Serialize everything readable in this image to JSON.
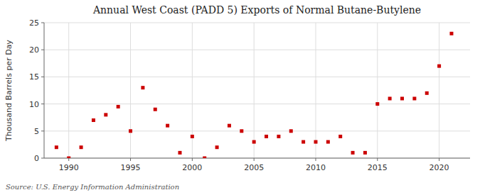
{
  "chart_data": {
    "type": "scatter",
    "title": "Annual West Coast (PADD 5) Exports of Normal Butane-Butylene",
    "ylabel": "Thousand Barrels per Day",
    "source": "Source: U.S. Energy Information Administration",
    "x": [
      1989,
      1990,
      1991,
      1992,
      1993,
      1994,
      1995,
      1996,
      1997,
      1998,
      1999,
      2000,
      2001,
      2002,
      2003,
      2004,
      2005,
      2006,
      2007,
      2008,
      2009,
      2010,
      2011,
      2012,
      2013,
      2014,
      2015,
      2016,
      2017,
      2018,
      2019,
      2020,
      2021
    ],
    "values": [
      2.0,
      0.0,
      2.0,
      7.0,
      8.0,
      9.5,
      5.0,
      13.0,
      9.0,
      6.0,
      1.0,
      4.0,
      0.0,
      2.0,
      6.0,
      5.0,
      3.0,
      4.0,
      4.0,
      5.0,
      3.0,
      3.0,
      3.0,
      4.0,
      1.0,
      1.0,
      10.0,
      11.0,
      11.0,
      11.0,
      12.0,
      17.0,
      23.0
    ],
    "color": "#cc0000",
    "marker": "square",
    "xlim": [
      1988.0,
      2022.5
    ],
    "xticks": [
      1990,
      1995,
      2000,
      2005,
      2010,
      2015,
      2020
    ],
    "ylim": [
      0,
      25
    ],
    "yticks": [
      0,
      5,
      10,
      15,
      20,
      25
    ],
    "grid": true
  }
}
